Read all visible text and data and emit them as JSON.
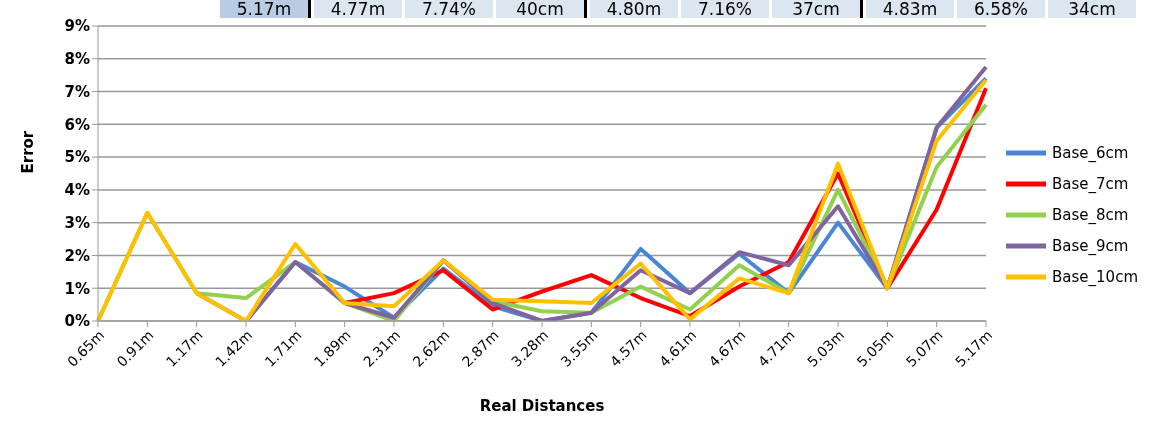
{
  "chart_data": {
    "type": "line",
    "xlabel": "Real Distances",
    "ylabel": "Error",
    "categories": [
      "0.65m",
      "0.91m",
      "1.17m",
      "1.42m",
      "1.71m",
      "1.89m",
      "2.31m",
      "2.62m",
      "2.87m",
      "3.28m",
      "3.55m",
      "4.57m",
      "4.61m",
      "4.67m",
      "4.71m",
      "5.03m",
      "5.05m",
      "5.07m",
      "5.17m"
    ],
    "series": [
      {
        "name": "Base_6cm",
        "color": "#4a86d4",
        "values": [
          null,
          null,
          null,
          0,
          1.8,
          1.05,
          0.1,
          1.6,
          0.45,
          0,
          0.25,
          2.2,
          0.85,
          2.05,
          0.85,
          3.0,
          1.0,
          5.9,
          7.4
        ]
      },
      {
        "name": "Base_7cm",
        "color": "#ff0000",
        "values": [
          null,
          null,
          null,
          null,
          null,
          0.55,
          0.85,
          1.55,
          0.35,
          0.9,
          1.4,
          0.7,
          0.15,
          1.05,
          1.8,
          4.5,
          1.0,
          3.4,
          7.1
        ]
      },
      {
        "name": "Base_8cm",
        "color": "#92d050",
        "values": [
          0,
          3.3,
          0.85,
          0.7,
          1.8,
          0.55,
          0,
          1.85,
          0.6,
          0.3,
          0.25,
          1.05,
          0.35,
          1.7,
          0.85,
          4.0,
          1.0,
          4.7,
          6.6
        ]
      },
      {
        "name": "Base_9cm",
        "color": "#8064a2",
        "values": [
          null,
          null,
          0.85,
          0,
          1.8,
          0.55,
          0.1,
          1.85,
          0.55,
          0,
          0.25,
          1.55,
          0.85,
          2.1,
          1.7,
          3.5,
          1.0,
          5.9,
          7.75
        ]
      },
      {
        "name": "Base_10cm",
        "color": "#ffc000",
        "values": [
          0,
          3.3,
          0.85,
          0,
          2.35,
          0.55,
          0.45,
          1.85,
          0.65,
          0.6,
          0.55,
          1.75,
          0.05,
          1.3,
          0.85,
          4.8,
          1.0,
          5.5,
          7.35
        ]
      }
    ],
    "ylim": [
      0,
      9
    ],
    "yticks": [
      {
        "value": 0,
        "label": "0%"
      },
      {
        "value": 1,
        "label": "1%"
      },
      {
        "value": 2,
        "label": "2%"
      },
      {
        "value": 3,
        "label": "3%"
      },
      {
        "value": 4,
        "label": "4%"
      },
      {
        "value": 5,
        "label": "5%"
      },
      {
        "value": 6,
        "label": "6%"
      },
      {
        "value": 7,
        "label": "7%"
      },
      {
        "value": 8,
        "label": "8%"
      },
      {
        "value": 9,
        "label": "9%"
      }
    ],
    "grid": "y",
    "legend": "right",
    "marker": "none",
    "line_style": "solid",
    "annotations": [
      "5.17m",
      "4.77m",
      "7.74%",
      "40cm",
      "4.80m",
      "7.16%",
      "37cm",
      "4.83m",
      "6.58%",
      "34cm"
    ]
  }
}
